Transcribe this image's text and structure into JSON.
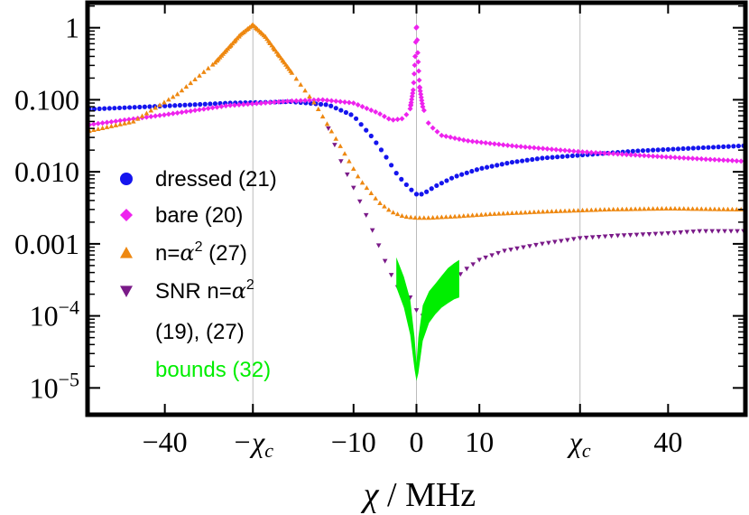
{
  "chart_data": {
    "type": "scatter",
    "xlabel_var": "χ",
    "xlabel_sep": " / ",
    "xlabel_unit": "MHz",
    "x_ticks": [
      {
        "value": -40,
        "label": "−40"
      },
      {
        "value": -26,
        "label": "−χ",
        "sub": "c"
      },
      {
        "value": -10,
        "label": "−10"
      },
      {
        "value": 0,
        "label": "0"
      },
      {
        "value": 10,
        "label": "10"
      },
      {
        "value": 26,
        "label": "χ",
        "sub": "c"
      },
      {
        "value": 40,
        "label": "40"
      }
    ],
    "y_ticks": [
      {
        "value": 1,
        "label": "1"
      },
      {
        "value": 0.1,
        "label": "0.100"
      },
      {
        "value": 0.01,
        "label": "0.010"
      },
      {
        "value": 0.001,
        "label": "0.001"
      },
      {
        "value": 0.0001,
        "label": "10",
        "sup": "−4"
      },
      {
        "value": 1e-05,
        "label": "10",
        "sup": "−5"
      }
    ],
    "xlim": [
      -52,
      52
    ],
    "ylim": [
      4.5e-06,
      2.1
    ],
    "yscale": "log",
    "grid": "vertical lines at x = −χc, 0, χc",
    "legend_position": "left",
    "colors": {
      "dressed": "#1515ee",
      "bare": "#ee22ee",
      "n_alpha2": "#ee8811",
      "snr": "#7a1a88",
      "bounds": "#00ee00"
    },
    "legend": [
      {
        "id": "dressed",
        "marker": "circle",
        "text": "dressed (21)"
      },
      {
        "id": "bare",
        "marker": "diamond",
        "text": "bare (20)"
      },
      {
        "id": "n_alpha2",
        "marker": "triangle-up",
        "prefix": "n=",
        "var": "α",
        "sup": "2",
        "suffix": " (27)"
      },
      {
        "id": "snr",
        "marker": "triangle-down",
        "prefix": "SNR n=",
        "var": "α",
        "sup": "2",
        "suffix": ""
      },
      {
        "id": "snr2",
        "marker": "none",
        "text": "(19), (27)"
      },
      {
        "id": "bounds",
        "marker": "none",
        "text": "bounds (32)"
      }
    ],
    "series": [
      {
        "name": "dressed (21)",
        "marker": "circle",
        "points": [
          [
            -52,
            0.074
          ],
          [
            -40,
            0.082
          ],
          [
            -30,
            0.09
          ],
          [
            -20,
            0.094
          ],
          [
            -14,
            0.085
          ],
          [
            -10,
            0.06
          ],
          [
            -7,
            0.03
          ],
          [
            -5,
            0.017
          ],
          [
            -3,
            0.009
          ],
          [
            -1,
            0.0058
          ],
          [
            0,
            0.0049
          ],
          [
            1,
            0.0049
          ],
          [
            3,
            0.0063
          ],
          [
            6,
            0.0085
          ],
          [
            10,
            0.011
          ],
          [
            15,
            0.0135
          ],
          [
            20,
            0.0155
          ],
          [
            26,
            0.017
          ],
          [
            35,
            0.0195
          ],
          [
            45,
            0.0215
          ],
          [
            52,
            0.023
          ]
        ]
      },
      {
        "name": "bare (20)",
        "marker": "diamond",
        "points": [
          [
            -52,
            0.045
          ],
          [
            -40,
            0.062
          ],
          [
            -30,
            0.083
          ],
          [
            -20,
            0.096
          ],
          [
            -15,
            0.1
          ],
          [
            -10,
            0.09
          ],
          [
            -6,
            0.065
          ],
          [
            -4,
            0.052
          ],
          [
            -2,
            0.055
          ],
          [
            -1,
            0.075
          ],
          [
            -0.5,
            0.14
          ],
          [
            -0.2,
            0.4
          ],
          [
            0,
            1.25
          ],
          [
            0.2,
            0.45
          ],
          [
            0.5,
            0.15
          ],
          [
            1,
            0.08
          ],
          [
            2,
            0.045
          ],
          [
            4,
            0.032
          ],
          [
            8,
            0.027
          ],
          [
            15,
            0.023
          ],
          [
            26,
            0.019
          ],
          [
            40,
            0.016
          ],
          [
            52,
            0.014
          ]
        ]
      },
      {
        "name": "n=α² (27)",
        "marker": "triangle-up",
        "points": [
          [
            -52,
            0.037
          ],
          [
            -45,
            0.05
          ],
          [
            -38,
            0.12
          ],
          [
            -32,
            0.33
          ],
          [
            -28,
            0.8
          ],
          [
            -26,
            1.1
          ],
          [
            -24,
            0.75
          ],
          [
            -20,
            0.25
          ],
          [
            -16,
            0.085
          ],
          [
            -12,
            0.022
          ],
          [
            -9,
            0.0078
          ],
          [
            -6,
            0.0038
          ],
          [
            -4,
            0.0028
          ],
          [
            -2,
            0.0024
          ],
          [
            0,
            0.0023
          ],
          [
            2,
            0.0023
          ],
          [
            6,
            0.0024
          ],
          [
            12,
            0.0026
          ],
          [
            20,
            0.0028
          ],
          [
            30,
            0.003
          ],
          [
            40,
            0.0031
          ],
          [
            52,
            0.003
          ]
        ]
      },
      {
        "name": "SNR n=α²",
        "marker": "triangle-down",
        "points": [
          [
            -14,
            0.04
          ],
          [
            -12,
            0.014
          ],
          [
            -10,
            0.006
          ],
          [
            -8,
            0.0025
          ],
          [
            -6,
            0.00095
          ],
          [
            -4.5,
            0.00045
          ],
          [
            -3,
            0.00025
          ],
          [
            -2,
            0.00016
          ],
          [
            -1,
            0.00018
          ],
          [
            0,
            0.00012
          ],
          [
            1,
            0.0001
          ],
          [
            2,
            0.00013
          ],
          [
            3,
            0.00018
          ],
          [
            4.5,
            0.00026
          ],
          [
            6,
            0.00032
          ],
          [
            8,
            0.00045
          ],
          [
            10,
            0.0006
          ],
          [
            14,
            0.0008
          ],
          [
            20,
            0.001
          ],
          [
            26,
            0.0012
          ],
          [
            32,
            0.0013
          ],
          [
            40,
            0.0014
          ],
          [
            45,
            0.0015
          ],
          [
            52,
            0.0015
          ]
        ]
      },
      {
        "name": "bounds (32)",
        "marker": "band",
        "upper": [
          [
            -3.2,
            0.00065
          ],
          [
            -2,
            0.00035
          ],
          [
            -1,
            0.00017
          ],
          [
            -0.3,
            5e-05
          ],
          [
            0,
            2.2e-05
          ],
          [
            0.3,
            5e-05
          ],
          [
            1,
            0.00014
          ],
          [
            2,
            0.00022
          ],
          [
            3,
            0.00028
          ],
          [
            4,
            0.00036
          ],
          [
            5,
            0.00046
          ],
          [
            6,
            0.00054
          ],
          [
            6.8,
            0.0006
          ]
        ],
        "lower": [
          [
            -3.2,
            0.00025
          ],
          [
            -2,
            0.00013
          ],
          [
            -1,
            5.5e-05
          ],
          [
            -0.3,
            1.8e-05
          ],
          [
            0,
            1.25e-05
          ],
          [
            0.3,
            1.6e-05
          ],
          [
            1,
            4.5e-05
          ],
          [
            2,
            8e-05
          ],
          [
            3,
            0.000105
          ],
          [
            4,
            0.00013
          ],
          [
            5,
            0.00015
          ],
          [
            6,
            0.00017
          ],
          [
            6.8,
            0.00018
          ]
        ]
      }
    ]
  }
}
